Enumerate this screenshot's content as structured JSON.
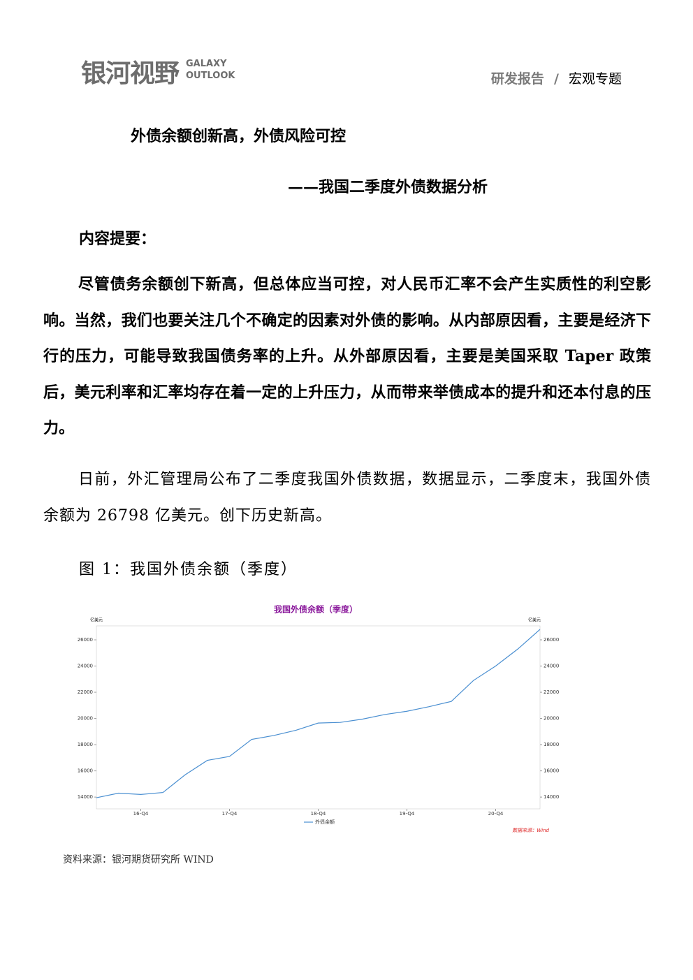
{
  "header": {
    "logo": "银河视野",
    "logo_en": [
      "GALAXY",
      "OUTLOOK"
    ],
    "category": "研发报告",
    "separator": "/",
    "topic": "宏观专题"
  },
  "title": "外债余额创新高，外债风险可控",
  "subtitle": "——我国二季度外债数据分析",
  "summary": {
    "heading": "内容提要：",
    "text": "尽管债务余额创下新高，但总体应当可控，对人民币汇率不会产生实质性的利空影响。当然，我们也要关注几个不确定的因素对外债的影响。从内部原因看，主要是经济下行的压力，可能导致我国债务率的上升。从外部原因看，主要是美国采取 Taper 政策后，美元利率和汇率均存在着一定的上升压力，从而带来举债成本的提升和还本付息的压力。"
  },
  "paragraphs": [
    "日前，外汇管理局公布了二季度我国外债数据，数据显示，二季度末，我国外债余额为 26798 亿美元。创下历史新高。"
  ],
  "figure": {
    "caption": "图 1：我国外债余额（季度）",
    "source": "资料来源：银河期货研究所  WIND"
  },
  "chart_data": {
    "type": "line",
    "title": "我国外债余额（季度）",
    "y_unit": "亿美元",
    "y2_unit": "亿美元",
    "categories": [
      null,
      null,
      "16-Q4",
      null,
      null,
      null,
      "17-Q4",
      null,
      null,
      null,
      "18-Q4",
      null,
      null,
      null,
      "19-Q4",
      null,
      null,
      null,
      "20-Q4",
      null,
      null
    ],
    "series": [
      {
        "name": "外债余额",
        "color": "#4a8fd1",
        "values": [
          13950,
          14300,
          14200,
          14350,
          15700,
          16800,
          17100,
          18400,
          18700,
          19100,
          19650,
          19700,
          19950,
          20300,
          20550,
          20900,
          21300,
          22900,
          24000,
          25300,
          26798
        ]
      }
    ],
    "ylim": [
      13100,
      27600
    ],
    "yticks": [
      14000,
      16000,
      18000,
      20000,
      22000,
      24000,
      26000
    ],
    "y2lim": [
      13100,
      27600
    ],
    "y2ticks": [
      14000,
      16000,
      18000,
      20000,
      22000,
      24000,
      26000
    ],
    "source": "数据来源：Wind"
  }
}
